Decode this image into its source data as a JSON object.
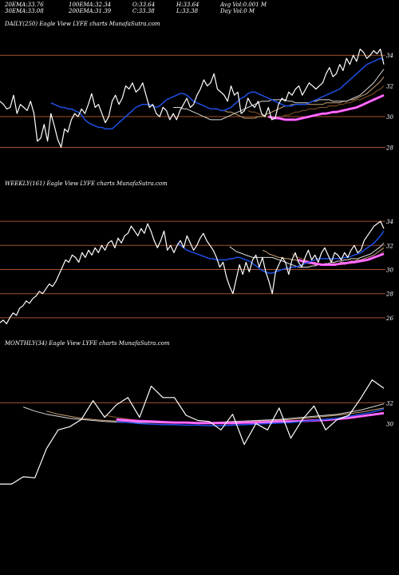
{
  "header": {
    "row1": [
      {
        "label": "20EMA:",
        "value": "33.76"
      },
      {
        "label": "100EMA:",
        "value": "32.34"
      },
      {
        "label": "O:",
        "value": "33.64"
      },
      {
        "label": "H:",
        "value": "33.64"
      },
      {
        "label": "Avg Vol:",
        "value": "0.001 M"
      }
    ],
    "row2": [
      {
        "label": "30EMA:",
        "value": "33.08"
      },
      {
        "label": "200EMA:",
        "value": "31.39"
      },
      {
        "label": "C:",
        "value": "33.38"
      },
      {
        "label": "L:",
        "value": "33.38"
      },
      {
        "label": "Day Vol:",
        "value": "0  M"
      }
    ]
  },
  "colors": {
    "background": "#000000",
    "price": "#ffffff",
    "ema20": "#1e50e6",
    "ema30": "#d8d8d8",
    "ema50": "#c8a070",
    "ema100": "#8b5a2b",
    "ema200": "#ff44ff",
    "ema200_inner": "#ff99ff",
    "gridline": "#a0522d"
  },
  "chart_data": [
    {
      "type": "line",
      "title": "DAILY(250) Eagle  View  LYFE charts MunafaSutra.com",
      "yticks": [
        28,
        30,
        32,
        34
      ],
      "ylim": [
        27.4,
        35.0
      ],
      "gridlines": [
        28,
        30,
        34
      ],
      "series": {
        "price": [
          31.0,
          30.8,
          30.5,
          30.6,
          31.4,
          30.2,
          30.8,
          30.6,
          30.4,
          31.0,
          30.2,
          28.4,
          28.6,
          29.5,
          28.4,
          30.2,
          29.4,
          28.5,
          28.0,
          29.2,
          29.0,
          29.8,
          30.2,
          30.0,
          30.5,
          30.2,
          30.8,
          31.5,
          30.6,
          30.8,
          30.2,
          29.6,
          30.0,
          31.0,
          31.4,
          30.8,
          31.2,
          32.0,
          31.8,
          32.2,
          31.6,
          31.8,
          32.2,
          31.4,
          30.6,
          30.8,
          30.2,
          30.0,
          30.6,
          30.4,
          29.8,
          30.2,
          29.8,
          30.4,
          30.8,
          31.2,
          30.6,
          30.8,
          31.4,
          31.8,
          32.4,
          32.0,
          32.2,
          32.8,
          31.8,
          31.6,
          31.4,
          31.0,
          32.0,
          31.4,
          31.6,
          30.2,
          30.4,
          31.2,
          30.8,
          30.6,
          31.0,
          30.2,
          30.0,
          30.6,
          29.8,
          29.9,
          30.8,
          31.2,
          31.0,
          31.6,
          31.4,
          31.8,
          32.0,
          31.4,
          31.8,
          32.2,
          32.0,
          31.8,
          32.0,
          32.2,
          32.8,
          33.2,
          32.6,
          32.8,
          33.4,
          33.0,
          33.8,
          33.4,
          34.0,
          33.6,
          34.4,
          34.2,
          33.8,
          34.0,
          34.3,
          34.1,
          34.4,
          33.4
        ],
        "ema20": [
          30.9,
          30.8,
          30.7,
          30.6,
          30.6,
          30.5,
          30.5,
          30.4,
          30.3,
          30.1,
          29.8,
          29.6,
          29.5,
          29.4,
          29.3,
          29.3,
          29.2,
          29.2,
          29.2,
          29.4,
          29.6,
          29.8,
          30.0,
          30.2,
          30.4,
          30.6,
          30.7,
          30.8,
          30.8,
          30.8,
          30.7,
          30.6,
          30.7,
          30.9,
          31.1,
          31.2,
          31.3,
          31.4,
          31.5,
          31.5,
          31.4,
          31.2,
          31.0,
          30.9,
          30.8,
          30.7,
          30.6,
          30.5,
          30.5,
          30.5,
          30.4,
          30.4,
          30.5,
          30.6,
          30.8,
          31.0,
          31.2,
          31.3,
          31.5,
          31.6,
          31.6,
          31.5,
          31.4,
          31.3,
          31.2,
          31.1,
          31.0,
          30.9,
          30.8,
          30.7,
          30.7,
          30.7,
          30.8,
          30.8,
          30.8,
          30.8,
          30.9,
          31.0,
          31.1,
          31.2,
          31.3,
          31.4,
          31.5,
          31.6,
          31.7,
          31.8,
          32.0,
          32.2,
          32.4,
          32.6,
          32.8,
          33.0,
          33.2,
          33.4,
          33.5,
          33.6,
          33.7,
          33.8,
          33.7
        ],
        "ema30": [
          30.6,
          30.6,
          30.6,
          30.5,
          30.5,
          30.4,
          30.3,
          30.2,
          30.1,
          30.0,
          29.9,
          29.8,
          29.8,
          29.8,
          29.8,
          29.9,
          30.0,
          30.1,
          30.2,
          30.3,
          30.4,
          30.5,
          30.6,
          30.7,
          30.8,
          30.9,
          31.0,
          31.0,
          31.0,
          31.1,
          31.1,
          31.1,
          31.1,
          31.1,
          31.0,
          31.0,
          30.9,
          30.9,
          30.9,
          30.9,
          30.9,
          31.0,
          31.0,
          31.1,
          31.1,
          31.1,
          31.1,
          31.0,
          31.0,
          31.0,
          31.0,
          31.0,
          31.1,
          31.2,
          31.3,
          31.4,
          31.6,
          31.8,
          32.0,
          32.2,
          32.5,
          32.8,
          33.1
        ],
        "ema50": [
          30.5,
          30.5,
          30.4,
          30.4,
          30.3,
          30.3,
          30.2,
          30.1,
          30.0,
          29.9,
          29.9,
          29.9,
          29.9,
          30.0,
          30.0,
          30.1,
          30.2,
          30.3,
          30.4,
          30.5,
          30.6,
          30.7,
          30.7,
          30.8,
          30.8,
          30.8,
          30.8,
          30.8,
          30.8,
          30.8,
          30.8,
          30.8,
          30.8,
          30.9,
          30.9,
          30.9,
          30.9,
          30.9,
          31.0,
          31.0,
          31.1,
          31.1,
          31.2,
          31.3,
          31.4,
          31.5,
          31.7,
          31.9,
          32.1,
          32.3,
          32.6
        ],
        "ema100": [
          30.4,
          30.3,
          30.3,
          30.2,
          30.1,
          30.0,
          30.0,
          30.0,
          30.0,
          30.0,
          30.0,
          30.1,
          30.1,
          30.2,
          30.3,
          30.3,
          30.4,
          30.4,
          30.5,
          30.5,
          30.5,
          30.6,
          30.6,
          30.6,
          30.7,
          30.7,
          30.7,
          30.8,
          30.8,
          30.9,
          30.9,
          31.0,
          31.1,
          31.1,
          31.2,
          31.3,
          31.4,
          31.5,
          31.7,
          31.8,
          32.0
        ],
        "ema200": [
          30.0,
          29.95,
          29.9,
          29.9,
          29.85,
          29.8,
          29.8,
          29.8,
          29.8,
          29.85,
          29.9,
          29.95,
          30.0,
          30.05,
          30.1,
          30.15,
          30.2,
          30.2,
          30.25,
          30.3,
          30.3,
          30.35,
          30.4,
          30.45,
          30.5,
          30.55,
          30.6,
          30.7,
          30.8,
          30.9,
          31.0,
          31.1,
          31.2,
          31.3,
          31.4
        ]
      }
    },
    {
      "type": "line",
      "title": "WEEKLY(161) Eagle  View  LYFE charts MunafaSutra.com",
      "yticks": [
        26,
        28,
        30,
        32,
        34
      ],
      "ylim": [
        25.2,
        35.0
      ],
      "gridlines": [
        26,
        28,
        30,
        32,
        34
      ],
      "series": {
        "price": [
          25.6,
          25.8,
          25.5,
          26.0,
          26.4,
          26.2,
          26.8,
          27.0,
          27.4,
          27.2,
          27.6,
          27.8,
          28.2,
          28.0,
          28.4,
          28.8,
          28.6,
          29.0,
          29.6,
          30.2,
          30.8,
          30.6,
          31.2,
          31.0,
          30.6,
          31.4,
          31.0,
          31.6,
          31.2,
          31.8,
          31.4,
          32.0,
          31.6,
          32.2,
          32.4,
          31.8,
          32.6,
          32.2,
          32.8,
          33.0,
          33.6,
          33.2,
          32.8,
          33.4,
          33.0,
          33.8,
          33.2,
          32.4,
          31.8,
          32.4,
          33.2,
          31.6,
          32.0,
          31.4,
          32.0,
          32.4,
          31.8,
          32.8,
          32.2,
          31.6,
          32.0,
          32.6,
          33.0,
          32.4,
          32.0,
          31.6,
          31.0,
          30.2,
          30.6,
          29.4,
          28.6,
          28.0,
          29.2,
          30.4,
          29.6,
          30.6,
          29.8,
          30.8,
          31.2,
          30.2,
          31.0,
          29.8,
          29.0,
          28.0,
          29.8,
          30.4,
          31.0,
          30.6,
          29.6,
          30.8,
          31.4,
          30.6,
          30.2,
          31.0,
          31.6,
          30.8,
          31.2,
          30.6,
          31.4,
          31.8,
          31.2,
          30.6,
          31.4,
          31.2,
          30.8,
          31.4,
          31.0,
          31.6,
          32.0,
          31.4,
          31.6,
          32.4,
          32.8,
          33.2,
          33.6,
          33.8,
          34.0,
          33.4
        ],
        "ema20": [
          32.2,
          32.0,
          31.8,
          31.6,
          31.5,
          31.4,
          31.3,
          31.2,
          31.1,
          31.0,
          30.9,
          30.9,
          30.8,
          30.8,
          30.8,
          30.8,
          30.9,
          30.9,
          31.0,
          31.0,
          30.9,
          30.8,
          30.7,
          30.5,
          30.3,
          30.1,
          29.9,
          29.8,
          29.7,
          29.7,
          29.8,
          29.9,
          30.0,
          30.1,
          30.1,
          30.2,
          30.2,
          30.3,
          30.4,
          30.5,
          30.6,
          30.7,
          30.8,
          30.9,
          30.9,
          30.9,
          30.9,
          30.9,
          30.9,
          30.9,
          30.9,
          31.0,
          31.0,
          31.1,
          31.2,
          31.3,
          31.4,
          31.6,
          31.8,
          32.0,
          32.2,
          32.5,
          32.8,
          33.2
        ],
        "ema30": [
          31.9,
          31.7,
          31.5,
          31.4,
          31.3,
          31.2,
          31.1,
          31.0,
          31.0,
          31.0,
          31.0,
          31.0,
          31.0,
          31.0,
          30.9,
          30.8,
          30.7,
          30.6,
          30.5,
          30.4,
          30.3,
          30.2,
          30.2,
          30.2,
          30.2,
          30.3,
          30.3,
          30.4,
          30.4,
          30.5,
          30.5,
          30.6,
          30.6,
          30.7,
          30.7,
          30.8,
          30.8,
          30.9,
          30.9,
          30.9,
          31.0,
          31.1,
          31.2,
          31.3,
          31.5,
          31.7,
          31.9,
          32.2
        ],
        "ema50": [
          31.6,
          31.5,
          31.3,
          31.2,
          31.1,
          31.0,
          31.0,
          30.9,
          30.9,
          30.8,
          30.8,
          30.7,
          30.7,
          30.6,
          30.5,
          30.5,
          30.4,
          30.4,
          30.4,
          30.4,
          30.4,
          30.5,
          30.5,
          30.5,
          30.6,
          30.6,
          30.6,
          30.7,
          30.7,
          30.8,
          30.8,
          30.9,
          31.0,
          31.1,
          31.2,
          31.4,
          31.6,
          31.8
        ],
        "ema100": [
          31.3,
          31.1,
          31.0,
          30.9,
          30.8,
          30.7,
          30.6,
          30.6,
          30.5,
          30.5,
          30.4,
          30.4,
          30.4,
          30.4,
          30.4,
          30.4,
          30.5,
          30.5,
          30.5,
          30.6,
          30.6,
          30.7,
          30.7,
          30.8,
          30.9,
          31.0,
          31.1,
          31.3,
          31.5
        ],
        "ema200": [
          30.8,
          30.7,
          30.65,
          30.6,
          30.55,
          30.5,
          30.45,
          30.4,
          30.4,
          30.4,
          30.4,
          30.4,
          30.45,
          30.5,
          30.5,
          30.55,
          30.6,
          30.6,
          30.65,
          30.7,
          30.75,
          30.8,
          30.9,
          31.0,
          31.1,
          31.2,
          31.3
        ]
      }
    },
    {
      "type": "line",
      "title": "MONTHLY(34) Eagle  View  LYFE charts MunafaSutra.com",
      "yticks": [
        30,
        32
      ],
      "ylim": [
        21.6,
        35.4
      ],
      "gridlines": [
        32
      ],
      "series": {
        "price": [
          24.2,
          24.2,
          24.9,
          24.8,
          27.6,
          29.4,
          29.7,
          30.4,
          32.2,
          30.6,
          31.8,
          32.5,
          30.6,
          33.6,
          32.5,
          32.5,
          30.8,
          30.3,
          30.2,
          29.4,
          30.9,
          28.0,
          30.0,
          29.4,
          31.5,
          28.6,
          30.4,
          31.7,
          29.4,
          30.4,
          30.8,
          32.4,
          34.2,
          33.4
        ],
        "ema20": [
          30.2,
          30.1,
          30.0,
          29.95,
          29.9,
          29.9,
          29.85,
          29.85,
          29.8,
          29.8,
          29.85,
          29.9,
          29.95,
          30.0,
          30.05,
          30.1,
          30.2,
          30.3,
          30.4,
          30.5,
          30.7,
          30.9,
          31.1,
          31.4
        ],
        "ema30": [
          31.6,
          31.2,
          30.9,
          30.7,
          30.5,
          30.4,
          30.3,
          30.2,
          30.15,
          30.1,
          30.1,
          30.1,
          30.05,
          30.05,
          30.1,
          30.1,
          30.1,
          30.15,
          30.2,
          30.25,
          30.3,
          30.35,
          30.4,
          30.5,
          30.6,
          30.7,
          30.8,
          30.9,
          31.1,
          31.3,
          31.6,
          31.9
        ],
        "ema50": [
          31.2,
          30.9,
          30.7,
          30.5,
          30.4,
          30.3,
          30.25,
          30.2,
          30.15,
          30.1,
          30.1,
          30.05,
          30.05,
          30.05,
          30.1,
          30.1,
          30.15,
          30.2,
          30.25,
          30.3,
          30.35,
          30.4,
          30.5,
          30.6,
          30.7,
          30.8,
          30.95,
          31.1,
          31.3,
          31.5
        ],
        "ema100": [
          30.8,
          30.6,
          30.45,
          30.3,
          30.2,
          30.15,
          30.1,
          30.05,
          30.0,
          30.0,
          30.0,
          30.0,
          30.05,
          30.1,
          30.1,
          30.15,
          30.2,
          30.25,
          30.3,
          30.35,
          30.45,
          30.55,
          30.7,
          30.85,
          31.0
        ],
        "ema200": [
          30.4,
          30.3,
          30.25,
          30.2,
          30.15,
          30.1,
          30.1,
          30.05,
          30.05,
          30.05,
          30.05,
          30.1,
          30.1,
          30.15,
          30.2,
          30.2,
          30.25,
          30.3,
          30.35,
          30.45,
          30.55,
          30.7,
          30.85,
          31.0
        ]
      }
    }
  ]
}
